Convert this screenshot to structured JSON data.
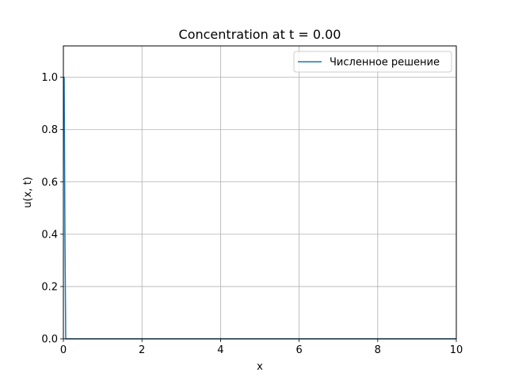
{
  "chart_data": {
    "type": "line",
    "title": "Concentration at t = 0.00",
    "xlabel": "x",
    "ylabel": "u(x, t)",
    "xlim": [
      0,
      10
    ],
    "ylim": [
      0,
      1.12
    ],
    "xticks": [
      0,
      2,
      4,
      6,
      8,
      10
    ],
    "yticks": [
      0.0,
      0.2,
      0.4,
      0.6,
      0.8,
      1.0
    ],
    "xtick_labels": [
      "0",
      "2",
      "4",
      "6",
      "8",
      "10"
    ],
    "ytick_labels": [
      "0.0",
      "0.2",
      "0.4",
      "0.6",
      "0.8",
      "1.0"
    ],
    "grid": true,
    "legend_position": "top-right",
    "series": [
      {
        "name": "Численное решение",
        "color": "#1f77b4",
        "x": [
          0.0,
          0.02,
          0.04,
          0.06,
          0.08,
          10.0
        ],
        "y": [
          1.0,
          1.0,
          0.4,
          0.0,
          0.0,
          0.0
        ]
      }
    ]
  }
}
